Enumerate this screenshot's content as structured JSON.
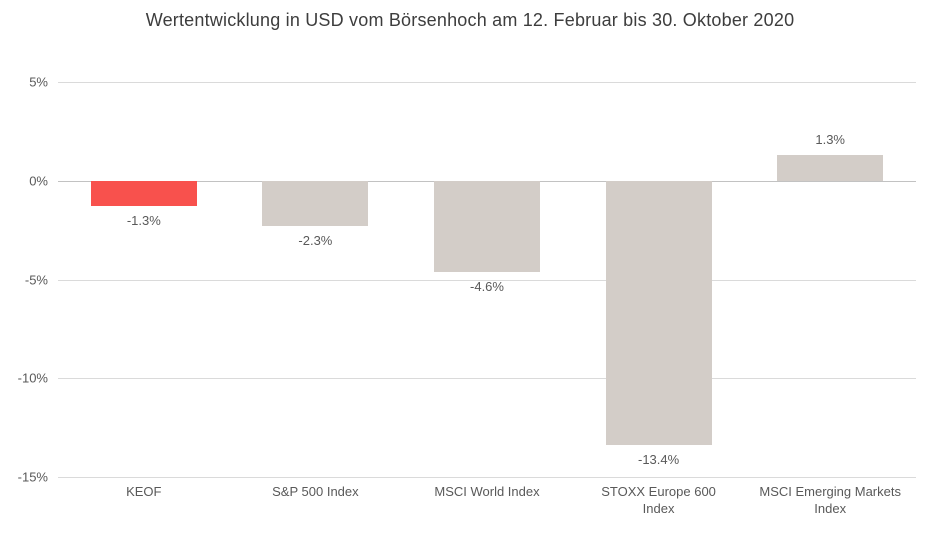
{
  "header": {
    "title": "Wertentwicklung in USD vom Börsenhoch am 12. Februar bis 30. Oktober 2020"
  },
  "chart_data": {
    "type": "bar",
    "title": "Wertentwicklung in USD vom Börsenhoch am 12. Februar bis 30. Oktober 2020",
    "categories": [
      "KEOF",
      "S&P 500 Index",
      "MSCI World Index",
      "STOXX Europe 600 Index",
      "MSCI Emerging Markets Index"
    ],
    "values": [
      -1.3,
      -2.3,
      -4.6,
      -13.4,
      1.3
    ],
    "value_labels": [
      "-1.3%",
      "-2.3%",
      "-4.6%",
      "-13.4%",
      "1.3%"
    ],
    "highlight_index": 0,
    "xlabel": "",
    "ylabel": "",
    "ylim": [
      -15,
      5
    ],
    "yticks": [
      5,
      0,
      -5,
      -10,
      -15
    ],
    "ytick_labels": [
      "5%",
      "0%",
      "-5%",
      "-10%",
      "-15%"
    ],
    "grid": true,
    "legend": false,
    "colors": {
      "highlight_bar": "#f8514d",
      "default_bar": "#d3cdc8",
      "gridline": "#dadada",
      "zero_line": "#c2c2c2",
      "text": "#595959",
      "title_text": "#3d3d3d"
    }
  }
}
